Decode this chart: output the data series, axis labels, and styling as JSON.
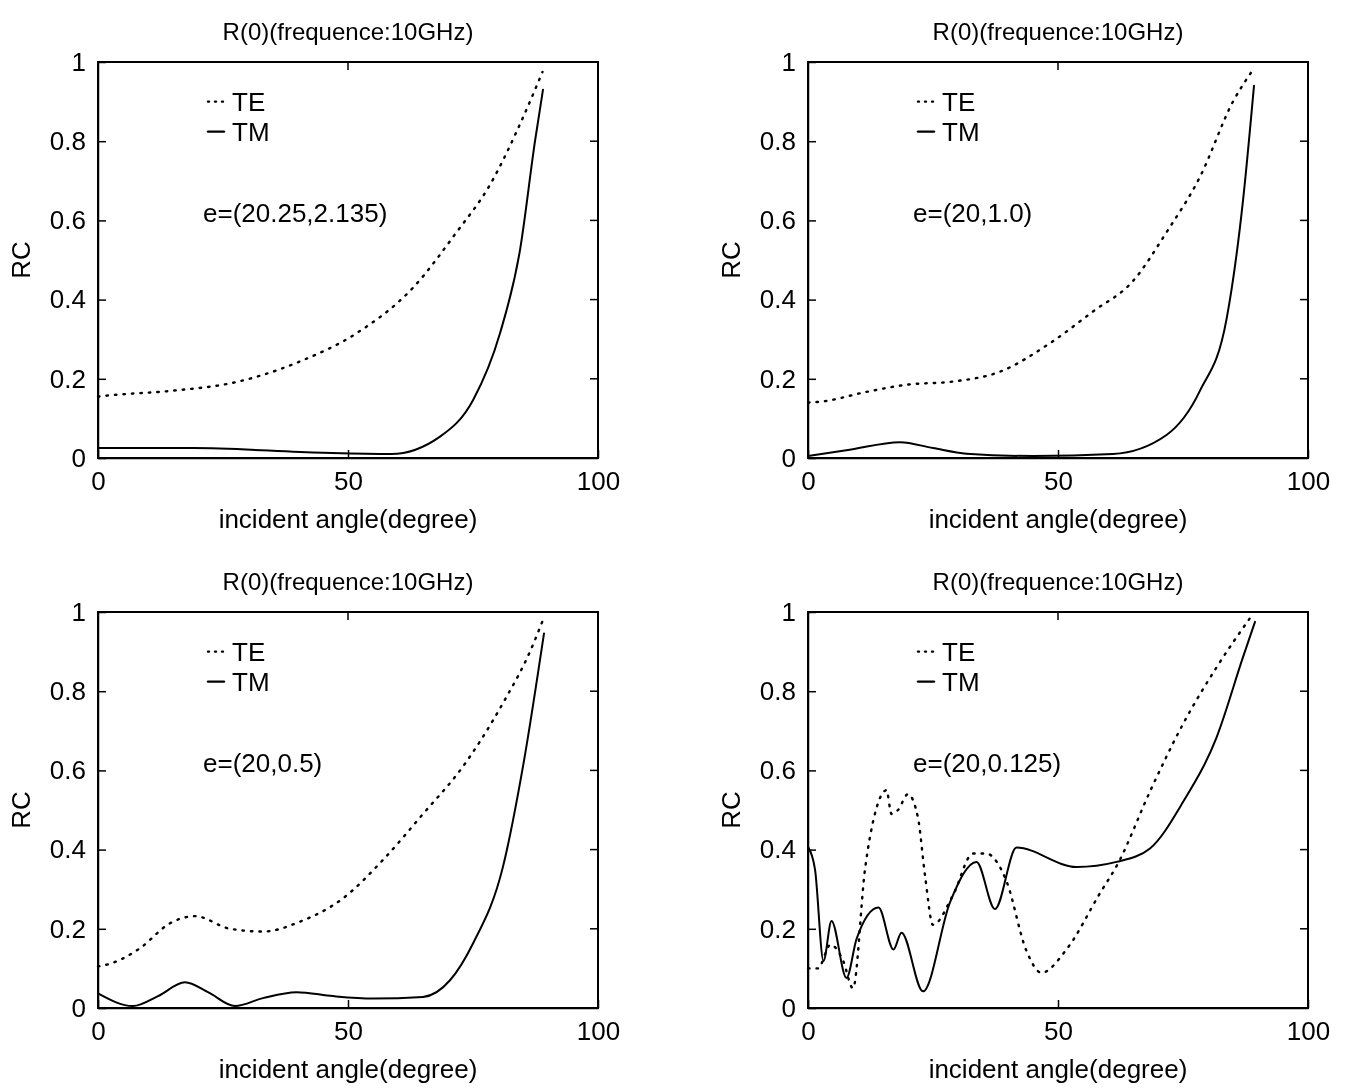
{
  "chart_data": [
    {
      "type": "line",
      "title": "R(0)(frequence:10GHz)",
      "xlabel": "incident angle(degree)",
      "ylabel": "RC",
      "xlim": [
        0,
        100
      ],
      "xticks": [
        0,
        50,
        100
      ],
      "ylim": [
        0,
        1
      ],
      "yticks": [
        0,
        0.2,
        0.4,
        0.6,
        0.8,
        1
      ],
      "legend": "top left",
      "annotations": [
        "e=(20.25,2.135)"
      ],
      "series": [
        {
          "name": "TE",
          "color": "#000000",
          "line_style": "dotted",
          "x": [
            0,
            1.4,
            15,
            27,
            41,
            51.7,
            63,
            71.7,
            78.4,
            85,
            88.9
          ],
          "values": [
            0.155,
            0.157,
            0.17,
            0.19,
            0.247,
            0.315,
            0.43,
            0.57,
            0.69,
            0.86,
            0.975
          ]
        },
        {
          "name": "TM",
          "color": "#000000",
          "line_style": "solid",
          "x": [
            0,
            19,
            45,
            58.6,
            68.4,
            75,
            80.4,
            84.4,
            87.4,
            89
          ],
          "values": [
            0.025,
            0.025,
            0.013,
            0.01,
            0.054,
            0.146,
            0.315,
            0.525,
            0.8,
            0.93
          ]
        }
      ]
    },
    {
      "type": "line",
      "title": "R(0)(frequence:10GHz)",
      "xlabel": "incident angle(degree)",
      "ylabel": "RC",
      "xlim": [
        0,
        100
      ],
      "xticks": [
        0,
        50,
        100
      ],
      "ylim": [
        0,
        1
      ],
      "yticks": [
        0,
        0.2,
        0.4,
        0.6,
        0.8,
        1
      ],
      "legend": "top left",
      "annotations": [
        "e=(20,1.0)"
      ],
      "series": [
        {
          "name": "TE",
          "color": "#000000",
          "line_style": "dotted",
          "x": [
            0,
            2.4,
            11.7,
            19.7,
            29,
            38.4,
            48.4,
            57,
            65,
            71.7,
            78.4,
            85,
            88.7
          ],
          "values": [
            0.14,
            0.142,
            0.167,
            0.185,
            0.193,
            0.218,
            0.29,
            0.37,
            0.447,
            0.57,
            0.71,
            0.9,
            0.975
          ]
        },
        {
          "name": "TM",
          "color": "#000000",
          "line_style": "solid",
          "x": [
            0,
            8,
            18.4,
            25,
            31.7,
            45,
            61,
            71.7,
            78.4,
            83.7,
            87,
            89.2
          ],
          "values": [
            0.005,
            0.02,
            0.04,
            0.025,
            0.011,
            0.005,
            0.01,
            0.058,
            0.17,
            0.35,
            0.65,
            0.94
          ]
        }
      ]
    },
    {
      "type": "line",
      "title": "R(0)(frequence:10GHz)",
      "xlabel": "incident angle(degree)",
      "ylabel": "RC",
      "xlim": [
        0,
        100
      ],
      "xticks": [
        0,
        50,
        100
      ],
      "ylim": [
        0,
        1
      ],
      "yticks": [
        0,
        0.2,
        0.4,
        0.6,
        0.8,
        1
      ],
      "legend": "top left",
      "annotations": [
        "e=(20,0.5)"
      ],
      "series": [
        {
          "name": "TE",
          "color": "#000000",
          "line_style": "dotted",
          "x": [
            0,
            2.7,
            8.3,
            14.4,
            19.4,
            26.4,
            33,
            40.4,
            49,
            57,
            65,
            73,
            81,
            86.4,
            89
          ],
          "values": [
            0.105,
            0.113,
            0.15,
            0.214,
            0.232,
            0.2,
            0.193,
            0.218,
            0.277,
            0.374,
            0.49,
            0.61,
            0.77,
            0.9,
            0.98
          ]
        },
        {
          "name": "TM",
          "color": "#000000",
          "line_style": "solid",
          "x": [
            0,
            7,
            12,
            17.4,
            22,
            27.4,
            33,
            39.7,
            47,
            55,
            65,
            70.4,
            75,
            81,
            85,
            89.2
          ],
          "values": [
            0.037,
            0.005,
            0.03,
            0.065,
            0.04,
            0.005,
            0.025,
            0.04,
            0.03,
            0.024,
            0.028,
            0.07,
            0.163,
            0.357,
            0.61,
            0.946
          ]
        }
      ]
    },
    {
      "type": "line",
      "title": "R(0)(frequence:10GHz)",
      "xlabel": "incident angle(degree)",
      "ylabel": "RC",
      "xlim": [
        0,
        100
      ],
      "xticks": [
        0,
        50,
        100
      ],
      "ylim": [
        0,
        1
      ],
      "yticks": [
        0,
        0.2,
        0.4,
        0.6,
        0.8,
        1
      ],
      "legend": "top left",
      "annotations": [
        "e=(20,0.125)"
      ],
      "series": [
        {
          "name": "TE",
          "color": "#000000",
          "line_style": "dotted",
          "x": [
            0,
            2,
            4.5,
            7,
            9,
            11.4,
            13.7,
            15.7,
            16.7,
            18,
            20,
            22,
            23.4,
            25,
            29,
            33,
            35.7,
            37.7,
            39.7,
            43.7,
            46.7,
            51.7,
            58.4,
            62,
            68.4,
            75,
            81.7,
            88.7
          ],
          "values": [
            0.1,
            0.1,
            0.16,
            0.12,
            0.05,
            0.35,
            0.505,
            0.55,
            0.49,
            0.5,
            0.54,
            0.48,
            0.335,
            0.21,
            0.285,
            0.39,
            0.39,
            0.37,
            0.32,
            0.144,
            0.089,
            0.148,
            0.29,
            0.365,
            0.547,
            0.717,
            0.86,
            0.99
          ]
        },
        {
          "name": "TM",
          "color": "#000000",
          "line_style": "solid",
          "x": [
            0,
            1.4,
            3.1,
            4.7,
            7.7,
            9.7,
            14.1,
            17.1,
            18.7,
            23,
            28.4,
            33.7,
            37.4,
            41.7,
            53.7,
            61.7,
            68.4,
            75,
            81.7,
            87,
            89.4
          ],
          "values": [
            0.407,
            0.35,
            0.119,
            0.22,
            0.076,
            0.174,
            0.254,
            0.148,
            0.19,
            0.042,
            0.267,
            0.369,
            0.25,
            0.405,
            0.356,
            0.369,
            0.403,
            0.52,
            0.683,
            0.886,
            0.975
          ]
        }
      ]
    }
  ]
}
